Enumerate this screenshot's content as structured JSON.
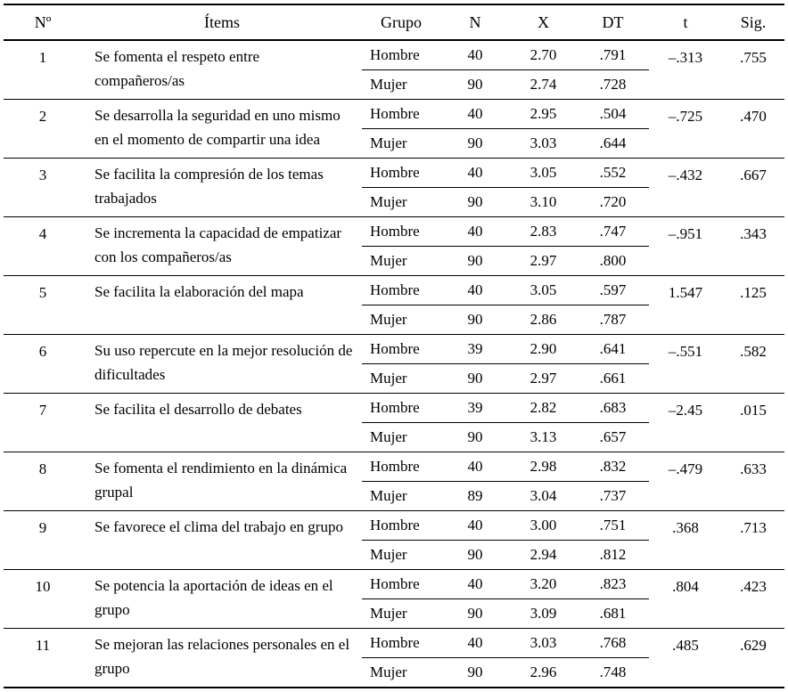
{
  "table": {
    "columns": {
      "num": "Nº",
      "items": "Ítems",
      "grupo": "Grupo",
      "n": "N",
      "x": "X",
      "dt": "DT",
      "t": "t",
      "sig": "Sig."
    },
    "group_labels": {
      "male": "Hombre",
      "female": "Mujer"
    },
    "rows": [
      {
        "num": "1",
        "item": "Se fomenta el respeto entre compañeros/as",
        "hombre": {
          "label": "Hombre",
          "n": "40",
          "x": "2.70",
          "dt": ".791"
        },
        "mujer": {
          "label": "Mujer",
          "n": "90",
          "x": "2.74",
          "dt": ".728"
        },
        "t": "–.313",
        "sig": ".755"
      },
      {
        "num": "2",
        "item": "Se desarrolla la seguridad en uno mismo en el momento de compartir una idea",
        "hombre": {
          "label": "Hombre",
          "n": "40",
          "x": "2.95",
          "dt": ".504"
        },
        "mujer": {
          "label": "Mujer",
          "n": "90",
          "x": "3.03",
          "dt": ".644"
        },
        "t": "–.725",
        "sig": ".470"
      },
      {
        "num": "3",
        "item": "Se facilita la compresión de los temas trabajados",
        "hombre": {
          "label": "Hombre",
          "n": "40",
          "x": "3.05",
          "dt": ".552"
        },
        "mujer": {
          "label": "Mujer",
          "n": "90",
          "x": "3.10",
          "dt": ".720"
        },
        "t": "–.432",
        "sig": ".667"
      },
      {
        "num": "4",
        "item": "Se incrementa la capacidad de empatizar con los compañeros/as",
        "hombre": {
          "label": "Hombre",
          "n": "40",
          "x": "2.83",
          "dt": ".747"
        },
        "mujer": {
          "label": "Mujer",
          "n": "90",
          "x": "2.97",
          "dt": ".800"
        },
        "t": "–.951",
        "sig": ".343"
      },
      {
        "num": "5",
        "item": "Se facilita la elaboración del mapa",
        "hombre": {
          "label": "Hombre",
          "n": "40",
          "x": "3.05",
          "dt": ".597"
        },
        "mujer": {
          "label": "Mujer",
          "n": "90",
          "x": "2.86",
          "dt": ".787"
        },
        "t": "1.547",
        "sig": ".125"
      },
      {
        "num": "6",
        "item": "Su uso repercute en la mejor resolución de dificultades",
        "hombre": {
          "label": "Hombre",
          "n": "39",
          "x": "2.90",
          "dt": ".641"
        },
        "mujer": {
          "label": "Mujer",
          "n": "90",
          "x": "2.97",
          "dt": ".661"
        },
        "t": "–.551",
        "sig": ".582"
      },
      {
        "num": "7",
        "item": "Se facilita el desarrollo de debates",
        "hombre": {
          "label": "Hombre",
          "n": "39",
          "x": "2.82",
          "dt": ".683"
        },
        "mujer": {
          "label": "Mujer",
          "n": "90",
          "x": "3.13",
          "dt": ".657"
        },
        "t": "–2.45",
        "sig": ".015"
      },
      {
        "num": "8",
        "item": "Se fomenta el rendimiento en la dinámica grupal",
        "hombre": {
          "label": "Hombre",
          "n": "40",
          "x": "2.98",
          "dt": ".832"
        },
        "mujer": {
          "label": "Mujer",
          "n": "89",
          "x": "3.04",
          "dt": ".737"
        },
        "t": "–.479",
        "sig": ".633"
      },
      {
        "num": "9",
        "item": "Se favorece el clima del trabajo en grupo",
        "hombre": {
          "label": "Hombre",
          "n": "40",
          "x": "3.00",
          "dt": ".751"
        },
        "mujer": {
          "label": "Mujer",
          "n": "90",
          "x": "2.94",
          "dt": ".812"
        },
        "t": ".368",
        "sig": ".713"
      },
      {
        "num": "10",
        "item": "Se potencia la aportación de ideas en el grupo",
        "hombre": {
          "label": "Hombre",
          "n": "40",
          "x": "3.20",
          "dt": ".823"
        },
        "mujer": {
          "label": "Mujer",
          "n": "90",
          "x": "3.09",
          "dt": ".681"
        },
        "t": ".804",
        "sig": ".423"
      },
      {
        "num": "11",
        "item": "Se mejoran las relaciones personales en el grupo",
        "hombre": {
          "label": "Hombre",
          "n": "40",
          "x": "3.03",
          "dt": ".768"
        },
        "mujer": {
          "label": "Mujer",
          "n": "90",
          "x": "2.96",
          "dt": ".748"
        },
        "t": ".485",
        "sig": ".629"
      }
    ]
  }
}
